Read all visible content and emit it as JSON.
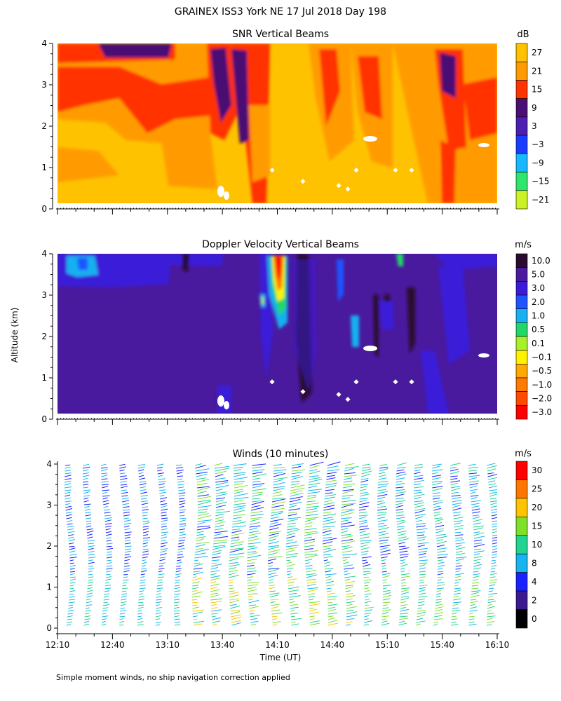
{
  "title": "GRAINEX ISS3 York NE  17 Jul 2018 Day 198",
  "ylabel": "Altitude (km)",
  "xlabel": "Time (UT)",
  "footnote": "Simple moment winds, no ship navigation correction applied",
  "chart_data": [
    {
      "type": "heatmap",
      "title": "SNR Vertical Beams",
      "colorbar_unit": "dB",
      "x_tick_labels": [],
      "y_ticks": [
        0,
        1,
        2,
        3,
        4
      ],
      "ylim": [
        0,
        4
      ],
      "colorbar_levels": [
        {
          "label": "27",
          "color": "#ffc200"
        },
        {
          "label": "21",
          "color": "#ff9b00"
        },
        {
          "label": "15",
          "color": "#ff3300"
        },
        {
          "label": "9",
          "color": "#4a0f73"
        },
        {
          "label": "3",
          "color": "#4c1fb0"
        },
        {
          "label": "−3",
          "color": "#1a3dff"
        },
        {
          "label": "−9",
          "color": "#17b8ff"
        },
        {
          "label": "−15",
          "color": "#2ee66e"
        },
        {
          "label": "−21",
          "color": "#ccf227"
        }
      ]
    },
    {
      "type": "heatmap",
      "title": "Doppler Velocity Vertical Beams",
      "colorbar_unit": "m/s",
      "x_tick_labels": [],
      "y_ticks": [
        0,
        1,
        2,
        3,
        4
      ],
      "ylim": [
        0,
        4
      ],
      "colorbar_levels": [
        {
          "label": "10.0",
          "color": "#2a0a2e"
        },
        {
          "label": "5.0",
          "color": "#4a1a9e"
        },
        {
          "label": "3.0",
          "color": "#3b1bd8"
        },
        {
          "label": "2.0",
          "color": "#1e55ff"
        },
        {
          "label": "1.0",
          "color": "#17b0f0"
        },
        {
          "label": "0.5",
          "color": "#22d66a"
        },
        {
          "label": "0.1",
          "color": "#a8f02a"
        },
        {
          "label": "−0.1",
          "color": "#fff200"
        },
        {
          "label": "−0.5",
          "color": "#ffaa00"
        },
        {
          "label": "−1.0",
          "color": "#ff7a00"
        },
        {
          "label": "−2.0",
          "color": "#ff4a00"
        },
        {
          "label": "−3.0",
          "color": "#ff0000"
        }
      ]
    },
    {
      "type": "scatter",
      "title": "Winds (10 minutes)",
      "colorbar_unit": "m/s",
      "x_tick_labels": [
        "12:10",
        "12:40",
        "13:10",
        "13:40",
        "14:10",
        "14:40",
        "15:10",
        "15:40",
        "16:10"
      ],
      "y_ticks": [
        0,
        1,
        2,
        3,
        4
      ],
      "ylim": [
        0,
        4
      ],
      "colorbar_levels": [
        {
          "label": "30",
          "color": "#ff0000"
        },
        {
          "label": "25",
          "color": "#ff7700"
        },
        {
          "label": "20",
          "color": "#ffc400"
        },
        {
          "label": "15",
          "color": "#7fe02a"
        },
        {
          "label": "10",
          "color": "#22d490"
        },
        {
          "label": "8",
          "color": "#17b4f0"
        },
        {
          "label": "4",
          "color": "#1a22ff"
        },
        {
          "label": "2",
          "color": "#3a1a8c"
        },
        {
          "label": "0",
          "color": "#000000"
        }
      ]
    }
  ]
}
